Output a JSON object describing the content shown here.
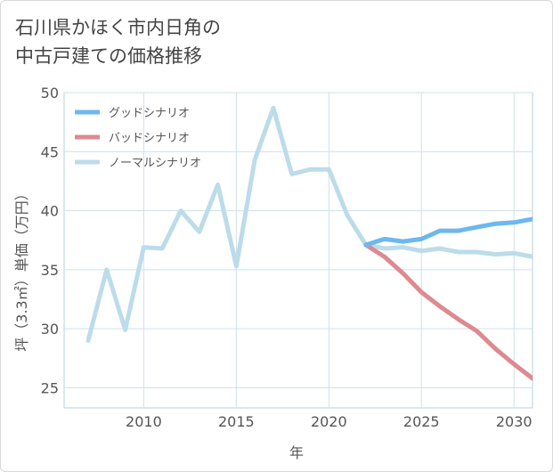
{
  "title_lines": [
    "石川県かほく市内日角の",
    "中古戸建ての価格推移"
  ],
  "chart_data": {
    "type": "line",
    "title": "石川県かほく市内日角の中古戸建ての価格推移",
    "xlabel": "年",
    "ylabel": "坪（3.3㎡）単価（万円）",
    "xlim": [
      2005.7,
      2031.0
    ],
    "ylim": [
      23.3,
      50.0
    ],
    "xticks": [
      2010,
      2015,
      2020,
      2025,
      2030
    ],
    "yticks": [
      25,
      30,
      35,
      40,
      45,
      50
    ],
    "grid": true,
    "legend_position": "top-left",
    "series": [
      {
        "name": "グッドシナリオ",
        "color": "#6cb8ef",
        "x": [
          2022,
          2023,
          2024,
          2025,
          2026,
          2027,
          2028,
          2029,
          2030,
          2031
        ],
        "values": [
          37.1,
          37.6,
          37.4,
          37.6,
          38.3,
          38.3,
          38.6,
          38.9,
          39.0,
          39.3
        ]
      },
      {
        "name": "バッドシナリオ",
        "color": "#dd8a90",
        "x": [
          2022,
          2023,
          2024,
          2025,
          2026,
          2027,
          2028,
          2029,
          2030,
          2031
        ],
        "values": [
          37.1,
          36.1,
          34.7,
          33.1,
          31.9,
          30.8,
          29.8,
          28.3,
          27.0,
          25.8
        ]
      },
      {
        "name": "ノーマルシナリオ",
        "color": "#bcdcea",
        "x": [
          2007,
          2008,
          2009,
          2010,
          2011,
          2012,
          2013,
          2014,
          2015,
          2016,
          2017,
          2018,
          2019,
          2020,
          2021,
          2022,
          2023,
          2024,
          2025,
          2026,
          2027,
          2028,
          2029,
          2030,
          2031
        ],
        "values": [
          29.0,
          35.0,
          29.9,
          36.9,
          36.8,
          40.0,
          38.2,
          42.2,
          35.3,
          44.3,
          48.7,
          43.1,
          43.5,
          43.5,
          39.6,
          37.1,
          36.8,
          36.9,
          36.6,
          36.8,
          36.5,
          36.5,
          36.3,
          36.4,
          36.1
        ]
      }
    ]
  }
}
